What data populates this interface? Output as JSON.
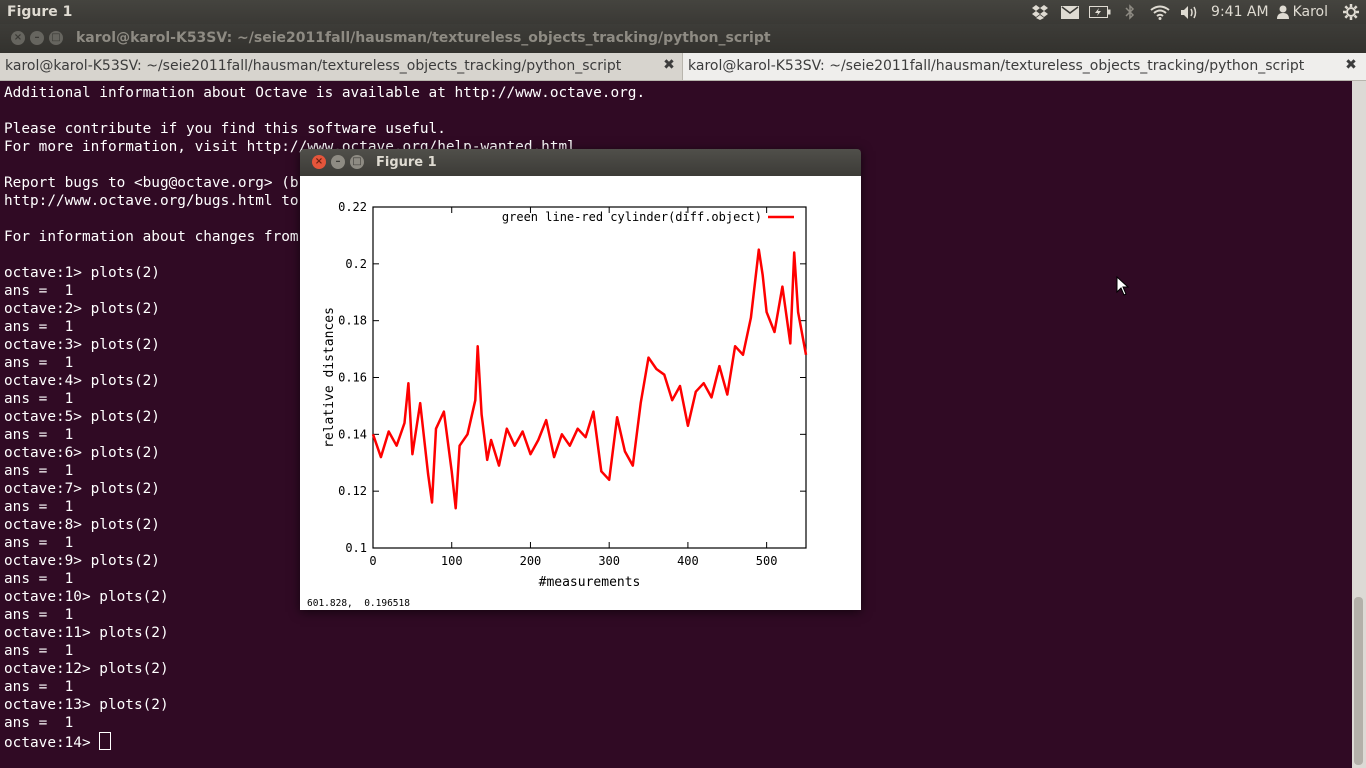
{
  "top_panel": {
    "app_title": "Figure 1",
    "clock": "9:41 AM",
    "user": "Karol",
    "indicator_icons": [
      "dropbox-icon",
      "mail-icon",
      "battery-icon",
      "bluetooth-icon",
      "wifi-icon",
      "volume-icon",
      "user-icon",
      "power-icon"
    ]
  },
  "window": {
    "title": "karol@karol-K53SV: ~/seie2011fall/hausman/textureless_objects_tracking/python_script"
  },
  "tabs": [
    {
      "label": "karol@karol-K53SV: ~/seie2011fall/hausman/textureless_objects_tracking/python_script",
      "active": false
    },
    {
      "label": "karol@karol-K53SV: ~/seie2011fall/hausman/textureless_objects_tracking/python_script",
      "active": true
    }
  ],
  "terminal": {
    "lines": [
      "Additional information about Octave is available at http://www.octave.org.",
      "",
      "Please contribute if you find this software useful.",
      "For more information, visit http://www.octave.org/help-wanted.html",
      "",
      "Report bugs to <bug@octave.org> (but first, please read",
      "http://www.octave.org/bugs.html to learn how to write a helpful report).",
      "",
      "For information about changes from previous versions, type `news'.",
      "",
      "octave:1> plots(2)",
      "ans =  1",
      "octave:2> plots(2)",
      "ans =  1",
      "octave:3> plots(2)",
      "ans =  1",
      "octave:4> plots(2)",
      "ans =  1",
      "octave:5> plots(2)",
      "ans =  1",
      "octave:6> plots(2)",
      "ans =  1",
      "octave:7> plots(2)",
      "ans =  1",
      "octave:8> plots(2)",
      "ans =  1",
      "octave:9> plots(2)",
      "ans =  1",
      "octave:10> plots(2)",
      "ans =  1",
      "octave:11> plots(2)",
      "ans =  1",
      "octave:12> plots(2)",
      "ans =  1",
      "octave:13> plots(2)",
      "ans =  1"
    ],
    "prompt": "octave:14> "
  },
  "figure_window": {
    "title": "Figure 1",
    "coord_readout": "601.828,  0.196518"
  },
  "chart_data": {
    "type": "line",
    "title": "",
    "xlabel": "#measurements",
    "ylabel": "relative distances",
    "xlim": [
      0,
      550
    ],
    "ylim": [
      0.1,
      0.22
    ],
    "xticks": [
      0,
      100,
      200,
      300,
      400,
      500
    ],
    "yticks": [
      0.1,
      0.12,
      0.14,
      0.16,
      0.18,
      0.2,
      0.22
    ],
    "xtick_labels": [
      "0",
      "100",
      "200",
      "300",
      "400",
      "500"
    ],
    "ytick_labels": [
      "0.1",
      "0.12",
      "0.14",
      "0.16",
      "0.18",
      "0.2",
      "0.22"
    ],
    "legend_position": "top-right",
    "grid": false,
    "series": [
      {
        "name": "green line-red cylinder(diff.object)",
        "color": "#ff0000",
        "x": [
          0,
          10,
          20,
          30,
          40,
          45,
          50,
          60,
          70,
          75,
          80,
          90,
          100,
          105,
          110,
          120,
          130,
          133,
          138,
          145,
          150,
          160,
          170,
          180,
          190,
          200,
          210,
          220,
          230,
          240,
          250,
          260,
          270,
          280,
          290,
          300,
          310,
          320,
          330,
          340,
          350,
          360,
          370,
          380,
          390,
          400,
          410,
          420,
          430,
          440,
          450,
          460,
          470,
          480,
          490,
          495,
          500,
          510,
          520,
          530,
          535,
          540,
          550
        ],
        "y": [
          0.14,
          0.132,
          0.141,
          0.136,
          0.144,
          0.158,
          0.133,
          0.151,
          0.126,
          0.116,
          0.142,
          0.148,
          0.127,
          0.114,
          0.136,
          0.14,
          0.152,
          0.171,
          0.147,
          0.131,
          0.138,
          0.129,
          0.142,
          0.136,
          0.141,
          0.133,
          0.138,
          0.145,
          0.132,
          0.14,
          0.136,
          0.142,
          0.139,
          0.148,
          0.127,
          0.124,
          0.146,
          0.134,
          0.129,
          0.151,
          0.167,
          0.163,
          0.161,
          0.152,
          0.157,
          0.143,
          0.155,
          0.158,
          0.153,
          0.164,
          0.154,
          0.171,
          0.168,
          0.181,
          0.205,
          0.196,
          0.183,
          0.176,
          0.192,
          0.172,
          0.204,
          0.183,
          0.168
        ]
      }
    ]
  }
}
